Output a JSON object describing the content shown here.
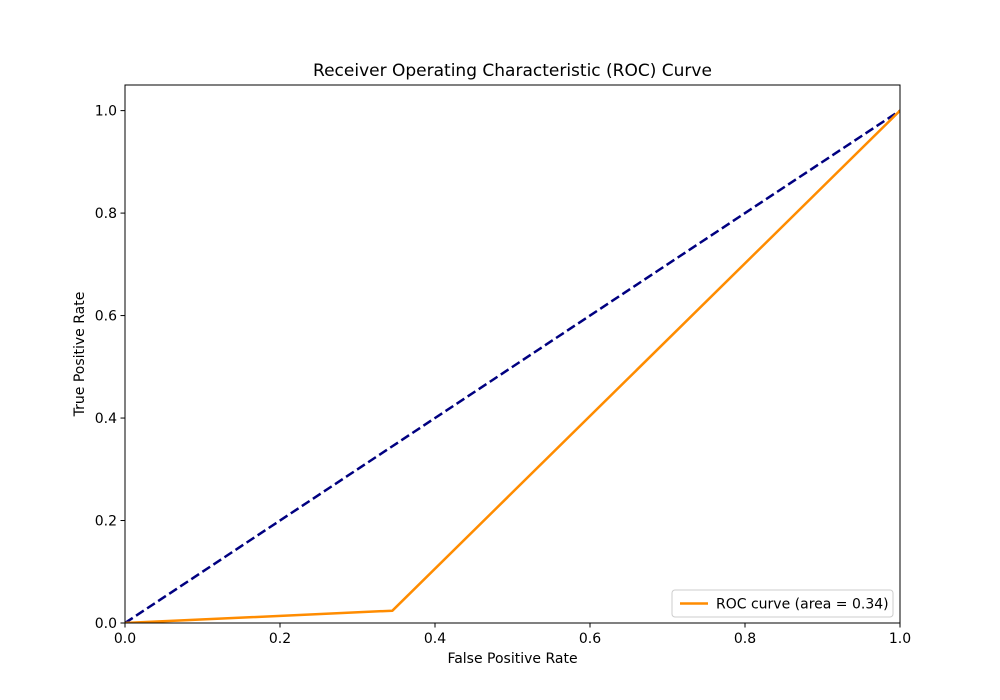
{
  "chart_data": {
    "type": "line",
    "title": "Receiver Operating Characteristic (ROC) Curve",
    "xlabel": "False Positive Rate",
    "ylabel": "True Positive Rate",
    "xlim": [
      0.0,
      1.0
    ],
    "ylim": [
      0.0,
      1.05
    ],
    "xticks": [
      "0.0",
      "0.2",
      "0.4",
      "0.6",
      "0.8",
      "1.0"
    ],
    "yticks": [
      "0.0",
      "0.2",
      "0.4",
      "0.6",
      "0.8",
      "1.0"
    ],
    "grid": false,
    "legend_position": "lower-right",
    "series": [
      {
        "name": "ROC curve (area = 0.34)",
        "color": "#ff8c00",
        "style": "solid",
        "x": [
          0.0,
          0.345,
          1.0
        ],
        "y": [
          0.0,
          0.024,
          1.0
        ]
      },
      {
        "color": "#000080",
        "style": "dashed",
        "x": [
          0.0,
          1.0
        ],
        "y": [
          0.0,
          1.0
        ]
      }
    ]
  }
}
